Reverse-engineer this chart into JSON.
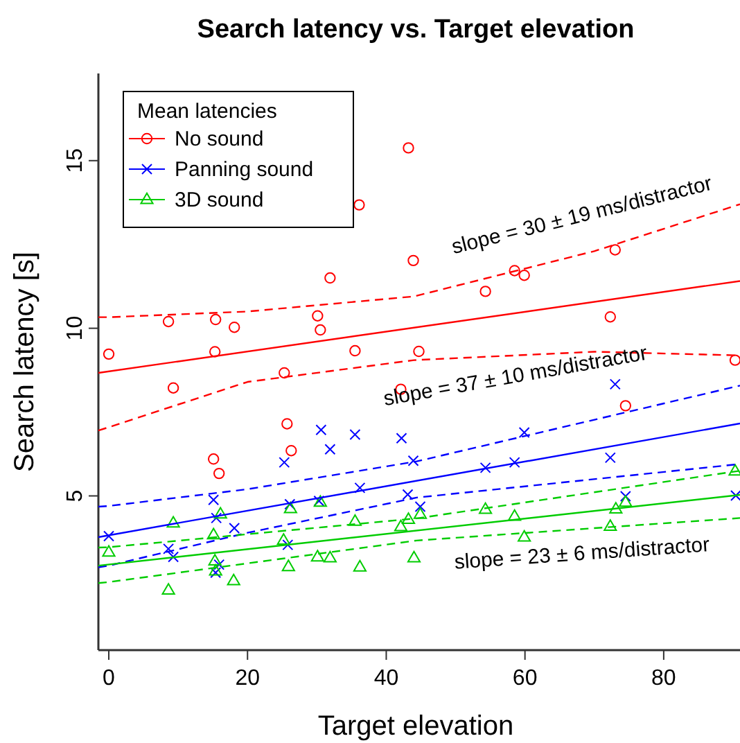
{
  "chart_data": {
    "type": "scatter",
    "title": "Search latency vs. Target elevation",
    "xlabel": "Target elevation",
    "ylabel": "Search latency [s]",
    "legend_title": "Mean latencies",
    "legend": "top left",
    "xlim": [
      -1.5,
      91
    ],
    "ylim": [
      0.4,
      17.6
    ],
    "xticks": [
      0,
      20,
      40,
      60,
      80
    ],
    "yticks": [
      5,
      10,
      15
    ],
    "grid": false,
    "annotations": [
      "slope = 30 ± 19 ms/distractor",
      "slope = 37 ± 10 ms/distractor",
      "slope = 23 ± 6 ms/distractor"
    ],
    "series": [
      {
        "name": "No sound",
        "marker": "circle",
        "color": "#ff0000",
        "x": [
          0,
          8.6,
          9.3,
          15.4,
          15.3,
          18.1,
          25.3,
          30.1,
          30.5,
          31.9,
          35.5,
          36.1,
          42.1,
          43.2,
          43.9,
          44.7,
          54.3,
          58.5,
          59.9,
          72.3,
          73,
          74.5,
          90.3,
          25.7,
          26.3,
          15.1,
          15.9
        ],
        "values": [
          9.23,
          10.2,
          8.22,
          10.26,
          9.3,
          10.03,
          8.67,
          10.37,
          9.95,
          11.5,
          9.33,
          13.68,
          8.18,
          15.38,
          12.02,
          9.31,
          11.1,
          11.72,
          11.58,
          10.34,
          12.34,
          7.69,
          9.05,
          7.15,
          6.35,
          6.1,
          5.67
        ]
      },
      {
        "name": "Panning sound",
        "marker": "cross",
        "color": "#0000ff",
        "x": [
          0,
          8.6,
          9.3,
          15.1,
          15.5,
          15.9,
          15.4,
          18.1,
          25.3,
          26.1,
          25.8,
          30.6,
          30.3,
          31.9,
          35.5,
          36.2,
          42.2,
          43.1,
          43.9,
          44.9,
          54.3,
          58.5,
          59.9,
          72.3,
          74.5,
          90.4,
          73
        ],
        "values": [
          3.8,
          3.42,
          3.18,
          4.88,
          4.34,
          2.95,
          2.71,
          4.04,
          6.0,
          4.75,
          3.54,
          6.97,
          4.85,
          6.39,
          6.83,
          5.24,
          6.72,
          5.04,
          6.05,
          4.68,
          5.84,
          6.0,
          6.89,
          6.14,
          4.99,
          5.01,
          8.33
        ]
      },
      {
        "name": "3D sound",
        "marker": "triangle",
        "color": "#00cc00",
        "x": [
          0,
          8.6,
          9.3,
          15.1,
          16.1,
          15.3,
          15.4,
          18,
          25.2,
          26.2,
          25.9,
          30.5,
          30.1,
          31.9,
          35.5,
          36.2,
          42.1,
          43.2,
          44,
          44.9,
          54.3,
          58.5,
          59.9,
          72.3,
          73.1,
          74.5,
          90.3
        ],
        "values": [
          3.32,
          2.19,
          4.19,
          3.84,
          4.46,
          3.06,
          2.76,
          2.47,
          3.68,
          4.62,
          2.89,
          4.81,
          3.18,
          3.15,
          4.24,
          2.88,
          4.08,
          4.3,
          3.15,
          4.45,
          4.6,
          4.39,
          3.77,
          4.09,
          4.61,
          4.81,
          5.74
        ]
      },
      {
        "type": "line",
        "line_style": "solid",
        "color": "#ff0000",
        "x": [
          -1.5,
          91
        ],
        "values": [
          8.67,
          11.41
        ]
      },
      {
        "type": "line",
        "line_style": "dashed",
        "color": "#ff0000",
        "x": [
          -1.5,
          0,
          20,
          44,
          70,
          91
        ],
        "values": [
          10.33,
          10.33,
          10.5,
          10.95,
          12.3,
          13.7
        ]
      },
      {
        "type": "line",
        "line_style": "dashed",
        "color": "#ff0000",
        "x": [
          -1.5,
          0,
          20,
          44,
          70,
          91
        ],
        "values": [
          6.95,
          7.05,
          8.4,
          9.05,
          9.3,
          9.19
        ]
      },
      {
        "type": "line",
        "line_style": "solid",
        "color": "#0000ff",
        "x": [
          -1.5,
          91
        ],
        "values": [
          3.77,
          7.16
        ]
      },
      {
        "type": "line",
        "line_style": "dashed",
        "color": "#0000ff",
        "x": [
          -1.5,
          0,
          20,
          44.4,
          91
        ],
        "values": [
          4.68,
          4.7,
          5.2,
          6.03,
          8.29
        ]
      },
      {
        "type": "line",
        "line_style": "dashed",
        "color": "#0000ff",
        "x": [
          -1.5,
          0,
          20,
          44.4,
          91
        ],
        "values": [
          2.87,
          2.92,
          3.9,
          4.95,
          5.95
        ]
      },
      {
        "type": "line",
        "line_style": "solid",
        "color": "#00cc00",
        "x": [
          -1.5,
          91
        ],
        "values": [
          2.92,
          5.03
        ]
      },
      {
        "type": "line",
        "line_style": "dashed",
        "color": "#00cc00",
        "x": [
          -1.5,
          0,
          44.4,
          91
        ],
        "values": [
          3.46,
          3.47,
          4.33,
          5.75
        ]
      },
      {
        "type": "line",
        "line_style": "dashed",
        "color": "#00cc00",
        "x": [
          -1.5,
          0,
          44.4,
          91
        ],
        "values": [
          2.4,
          2.43,
          3.67,
          4.34
        ]
      }
    ]
  }
}
